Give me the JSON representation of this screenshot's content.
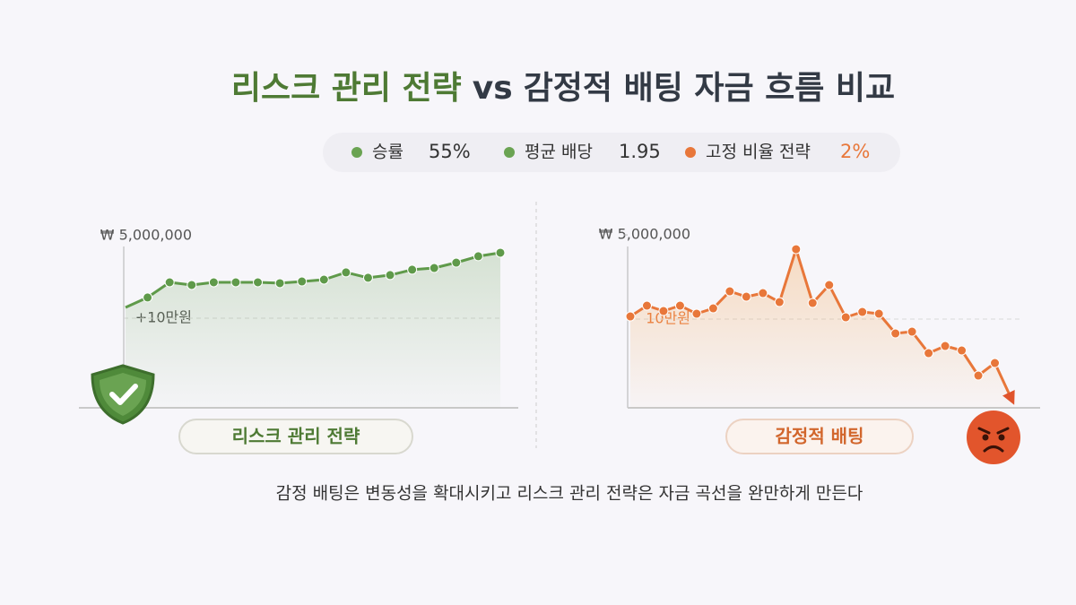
{
  "title_parts": [
    "리스크 관리 전략",
    "vs",
    "감정적 배팅 자금 흐름 비교"
  ],
  "stats": [
    {
      "label": "승률",
      "value": "55%"
    },
    {
      "label": "평균 배당",
      "value": "1.95"
    },
    {
      "label": "고정 비율 전략",
      "value": "2%"
    }
  ],
  "caption": "감정 배팅은 변동성을 확대시키고 리스크 관리 전략은 자금 곡선을 완만하게 만든다",
  "chart_data": [
    {
      "type": "line",
      "name": "리스크 관리 전략",
      "color": "#5f9a4a",
      "categories": [
        null,
        null,
        null,
        null,
        null,
        null,
        null,
        null,
        null,
        null,
        null,
        null,
        null,
        null,
        null,
        null,
        null,
        null
      ],
      "values": [
        740000,
        1330000,
        2230000,
        2070000,
        2230000,
        2230000,
        2230000,
        2180000,
        2280000,
        2390000,
        2820000,
        2500000,
        2660000,
        2980000,
        3080000,
        3400000,
        3780000,
        3990000
      ],
      "ylim": [
        -5230000,
        5960000
      ],
      "yticks": [
        {
          "value": 5000000,
          "label": "₩ 5,000,000"
        },
        {
          "value": 100000,
          "label": "+10만원"
        }
      ],
      "grid": true
    },
    {
      "type": "line",
      "name": "감정적 배팅",
      "color": "#e8773a",
      "categories": [
        null,
        null,
        null,
        null,
        null,
        null,
        null,
        null,
        null,
        null,
        null,
        null,
        null,
        null,
        null,
        null,
        null,
        null,
        null,
        null,
        null,
        null,
        null,
        null
      ],
      "values": [
        256000,
        882000,
        569000,
        882000,
        413000,
        725000,
        1716000,
        1403000,
        1612000,
        1090000,
        4166000,
        1038000,
        2081000,
        204000,
        517000,
        413000,
        -734000,
        -630000,
        -1881000,
        -1464000,
        -1724000,
        -3184000,
        -2454000,
        -4539000
      ],
      "ylim": [
        -5060000,
        5890000
      ],
      "yticks": [
        {
          "value": 5000000,
          "label": "₩ 5,000,000"
        },
        {
          "value": 100000,
          "label": "10만원"
        }
      ],
      "grid": true
    }
  ]
}
